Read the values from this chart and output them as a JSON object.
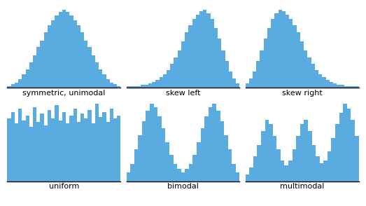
{
  "bar_color": "#5aace0",
  "bg_color": "#ffffff",
  "titles": [
    "symmetric, unimodal",
    "skew left",
    "skew right",
    "uniform",
    "bimodal",
    "multimodal"
  ],
  "symmetric_unimodal": [
    1,
    2,
    3,
    5,
    8,
    11,
    15,
    19,
    24,
    28,
    33,
    37,
    40,
    43,
    45,
    46,
    45,
    43,
    40,
    37,
    33,
    28,
    24,
    19,
    15,
    11,
    8,
    5,
    3,
    2,
    1
  ],
  "skew_left": [
    1,
    1,
    1,
    1,
    2,
    2,
    3,
    4,
    5,
    7,
    9,
    12,
    16,
    20,
    25,
    31,
    37,
    42,
    46,
    49,
    51,
    52,
    50,
    46,
    40,
    33,
    25,
    18,
    11,
    6,
    3
  ],
  "skew_right": [
    3,
    6,
    11,
    18,
    25,
    33,
    40,
    46,
    50,
    52,
    51,
    49,
    46,
    42,
    37,
    31,
    25,
    20,
    16,
    12,
    9,
    7,
    5,
    4,
    3,
    2,
    2,
    1,
    1,
    1,
    1
  ],
  "uniform": [
    38,
    42,
    35,
    44,
    37,
    40,
    33,
    45,
    36,
    41,
    34,
    43,
    38,
    46,
    37,
    42,
    35,
    40,
    44,
    36,
    41,
    38,
    43,
    35,
    47,
    39,
    42,
    36,
    44,
    38,
    40
  ],
  "bimodal": [
    5,
    10,
    18,
    26,
    34,
    40,
    44,
    42,
    37,
    30,
    22,
    15,
    10,
    7,
    5,
    7,
    10,
    15,
    22,
    30,
    37,
    42,
    44,
    40,
    34,
    26,
    18,
    10,
    5
  ],
  "multimodal": [
    3,
    6,
    11,
    16,
    22,
    27,
    25,
    20,
    14,
    9,
    7,
    9,
    14,
    20,
    25,
    27,
    22,
    16,
    11,
    8,
    9,
    13,
    19,
    25,
    30,
    34,
    32,
    27,
    20
  ]
}
